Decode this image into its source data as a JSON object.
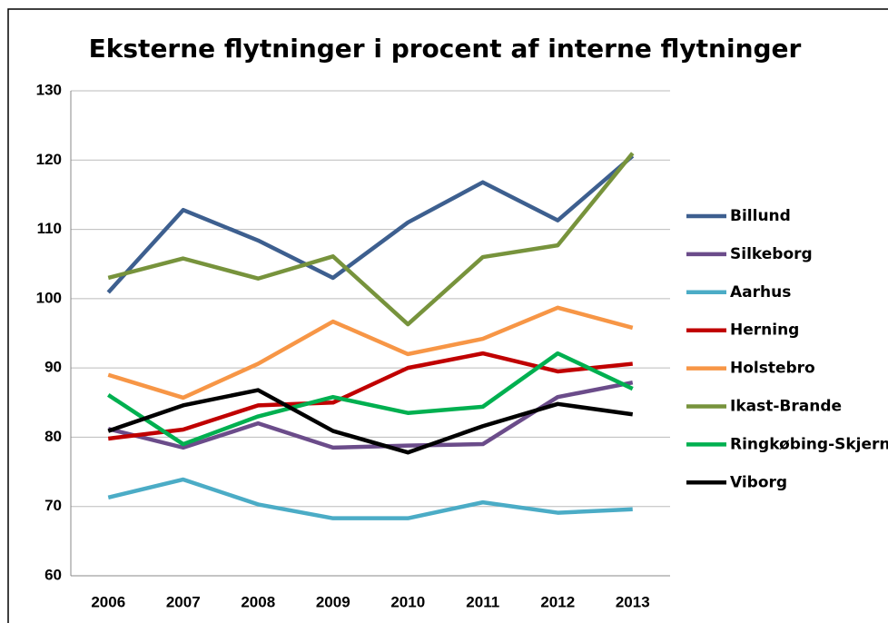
{
  "chart_data": {
    "type": "line",
    "title": "Eksterne flytninger i procent af interne flytninger",
    "categories": [
      "2006",
      "2007",
      "2008",
      "2009",
      "2010",
      "2011",
      "2012",
      "2013"
    ],
    "series": [
      {
        "name": "Billund",
        "color": "#3d5f8f",
        "values": [
          100.9,
          112.8,
          108.4,
          103,
          111,
          116.8,
          111.3,
          120.6
        ]
      },
      {
        "name": "Silkeborg",
        "color": "#6b4c8a",
        "values": [
          81.2,
          78.5,
          82,
          78.5,
          78.8,
          79,
          85.8,
          87.9
        ]
      },
      {
        "name": "Aarhus",
        "color": "#4bacc6",
        "values": [
          71.3,
          73.9,
          70.3,
          68.3,
          68.3,
          70.6,
          69.1,
          69.6
        ]
      },
      {
        "name": "Herning",
        "color": "#c00000",
        "values": [
          79.8,
          81.1,
          84.6,
          85,
          90,
          92.1,
          89.5,
          90.6
        ]
      },
      {
        "name": "Holstebro",
        "color": "#f79646",
        "values": [
          89,
          85.7,
          90.6,
          96.7,
          92,
          94.2,
          98.7,
          95.8
        ]
      },
      {
        "name": "Ikast-Brande",
        "color": "#77933c",
        "values": [
          103,
          105.8,
          102.9,
          106.1,
          96.3,
          106,
          107.7,
          121
        ]
      },
      {
        "name": "Ringkøbing-Skjern",
        "color": "#00b050",
        "values": [
          86.1,
          79,
          83,
          85.8,
          83.5,
          84.4,
          92.1,
          87
        ]
      },
      {
        "name": "Viborg",
        "color": "#000000",
        "values": [
          80.9,
          84.6,
          86.8,
          80.9,
          77.8,
          81.6,
          84.8,
          83.3
        ]
      }
    ],
    "ylim": [
      60,
      130
    ],
    "yticks": [
      60,
      70,
      80,
      90,
      100,
      110,
      120,
      130
    ],
    "grid": true,
    "legend": "right"
  }
}
